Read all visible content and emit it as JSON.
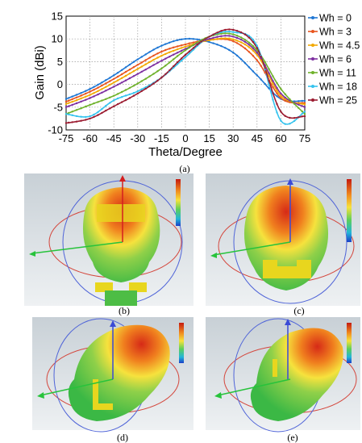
{
  "chart_data": {
    "type": "line",
    "xlabel": "Theta/Degree",
    "ylabel": "Gain (dBi)",
    "xlim": [
      -75,
      75
    ],
    "ylim": [
      -10,
      15
    ],
    "x_ticks": [
      -75,
      -60,
      -45,
      -30,
      -15,
      0,
      15,
      30,
      45,
      60,
      75
    ],
    "y_ticks": [
      -10,
      -5,
      0,
      5,
      10,
      15
    ],
    "grid": "dotted vertical and horizontal",
    "legend_position": "right-outside",
    "x": [
      -75,
      -60,
      -45,
      -30,
      -15,
      0,
      15,
      30,
      45,
      60,
      75
    ],
    "series": [
      {
        "name": "Wh = 0",
        "color": "#1f77d4",
        "values": [
          -3.2,
          -1.0,
          2.0,
          5.5,
          8.5,
          10.0,
          9.3,
          7.0,
          2.0,
          -3.2,
          -3.6
        ]
      },
      {
        "name": "Wh = 3",
        "color": "#e8541e",
        "values": [
          -3.8,
          -1.6,
          1.2,
          4.3,
          7.2,
          8.8,
          9.8,
          9.5,
          5.3,
          -3.0,
          -4.1
        ]
      },
      {
        "name": "Wh = 4.5",
        "color": "#f2a900",
        "values": [
          -4.3,
          -2.3,
          0.4,
          3.4,
          6.3,
          8.3,
          9.7,
          9.9,
          6.5,
          -2.5,
          -4.4
        ]
      },
      {
        "name": "Wh = 6",
        "color": "#7d2ea0",
        "values": [
          -5.0,
          -3.0,
          -0.5,
          2.3,
          5.2,
          7.8,
          10.0,
          10.5,
          7.0,
          -2.0,
          -5.0
        ]
      },
      {
        "name": "Wh = 11",
        "color": "#6fb22b",
        "values": [
          -6.5,
          -4.5,
          -2.5,
          0.2,
          3.5,
          7.5,
          10.5,
          11.0,
          7.5,
          -1.0,
          -6.5
        ]
      },
      {
        "name": "Wh = 18",
        "color": "#35c3ee",
        "values": [
          -6.5,
          -7.0,
          -3.5,
          -1.5,
          1.5,
          6.0,
          10.5,
          11.5,
          8.5,
          -8.0,
          -6.0
        ]
      },
      {
        "name": "Wh = 25",
        "color": "#9b1b30",
        "values": [
          -8.5,
          -7.5,
          -4.8,
          -2.0,
          1.5,
          6.5,
          10.5,
          12.0,
          8.0,
          -6.0,
          -7.0
        ]
      }
    ]
  },
  "captions": {
    "a": "(a)",
    "b": "(b)",
    "c": "(c)",
    "d": "(d)",
    "e": "(e)"
  },
  "panels": {
    "b": {
      "view": "front",
      "pattern_colors": [
        "#cc2a18",
        "#f07f1e",
        "#f8e23a",
        "#9bd14b",
        "#47c04a"
      ]
    },
    "c": {
      "view": "back",
      "pattern_colors": [
        "#cc2a18",
        "#f07f1e",
        "#f8e23a",
        "#9bd14b",
        "#47c04a"
      ]
    },
    "d": {
      "view": "oblique",
      "pattern_colors": [
        "#cc2a18",
        "#f07f1e",
        "#f8e23a",
        "#9bd14b",
        "#47c04a"
      ]
    },
    "e": {
      "view": "oblique-side",
      "pattern_colors": [
        "#cc2a18",
        "#f07f1e",
        "#f8e23a",
        "#9bd14b",
        "#47c04a"
      ]
    }
  }
}
